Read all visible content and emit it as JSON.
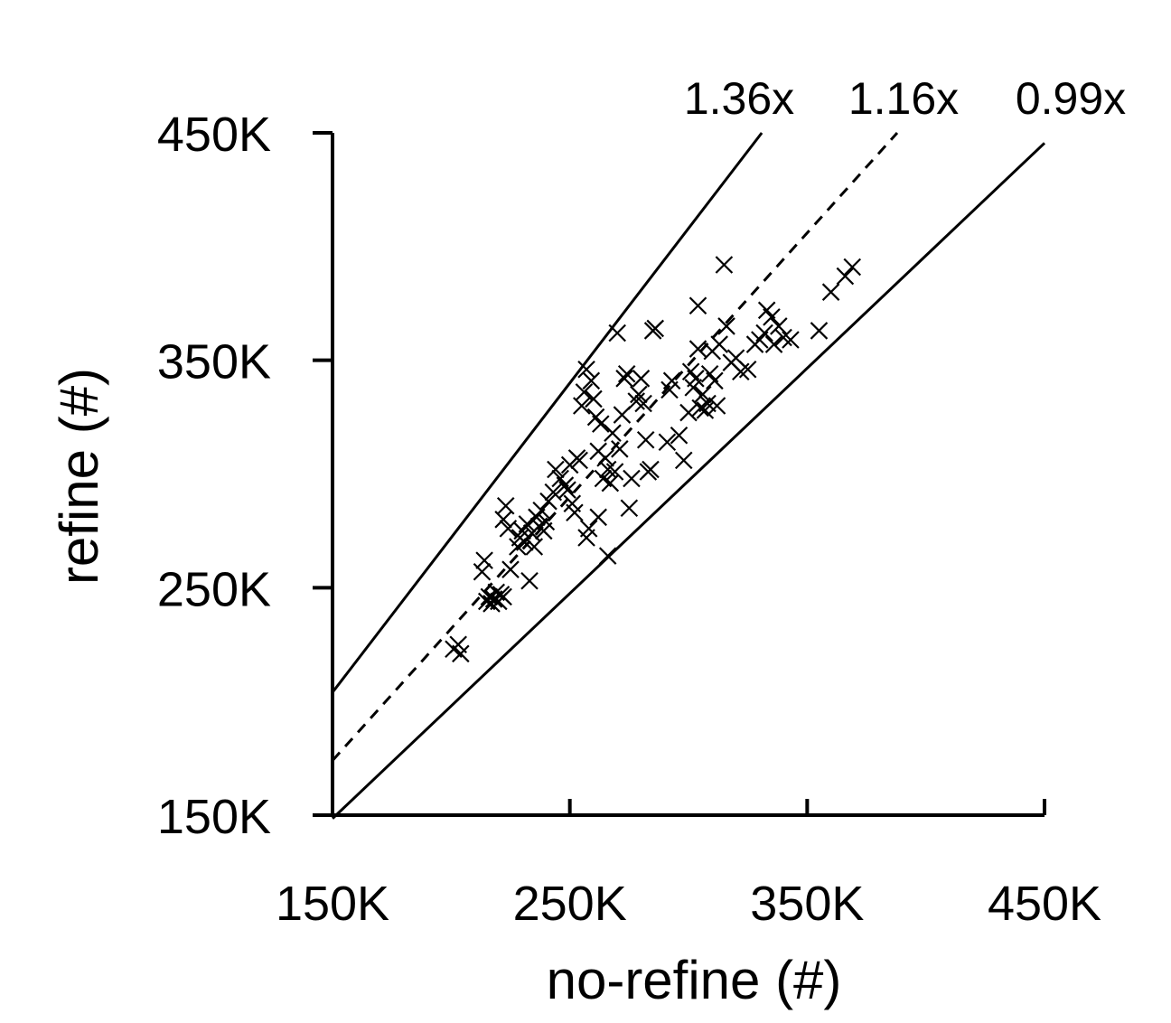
{
  "chart_data": {
    "type": "scatter",
    "title": "",
    "xlabel": "no-refine (#)",
    "ylabel": "refine (#)",
    "xlim": [
      150000,
      450000
    ],
    "ylim": [
      150000,
      450000
    ],
    "x_ticks": [
      {
        "value": 150000,
        "label": "150K"
      },
      {
        "value": 250000,
        "label": "250K"
      },
      {
        "value": 350000,
        "label": "350K"
      },
      {
        "value": 450000,
        "label": "450K"
      }
    ],
    "y_ticks": [
      {
        "value": 150000,
        "label": "150K"
      },
      {
        "value": 250000,
        "label": "250K"
      },
      {
        "value": 350000,
        "label": "350K"
      },
      {
        "value": 450000,
        "label": "450K"
      }
    ],
    "marker": "x",
    "reference_lines": [
      {
        "label": "1.36x",
        "slope": 1.36,
        "style": "solid"
      },
      {
        "label": "1.16x",
        "slope": 1.16,
        "style": "dashed"
      },
      {
        "label": "0.99x",
        "slope": 0.99,
        "style": "solid"
      }
    ],
    "points": [
      [
        201000,
        223000
      ],
      [
        203000,
        225000
      ],
      [
        204000,
        221000
      ],
      [
        213000,
        257000
      ],
      [
        214000,
        262000
      ],
      [
        215000,
        244000
      ],
      [
        216000,
        246000
      ],
      [
        217000,
        243000
      ],
      [
        218000,
        245000
      ],
      [
        219000,
        248000
      ],
      [
        220000,
        244000
      ],
      [
        221000,
        247000
      ],
      [
        222000,
        246000
      ],
      [
        222000,
        280000
      ],
      [
        223000,
        286000
      ],
      [
        224000,
        276000
      ],
      [
        225000,
        258000
      ],
      [
        228000,
        268000
      ],
      [
        229000,
        272000
      ],
      [
        230000,
        275000
      ],
      [
        231000,
        270000
      ],
      [
        232000,
        278000
      ],
      [
        233000,
        253000
      ],
      [
        234000,
        274000
      ],
      [
        235000,
        268000
      ],
      [
        236000,
        281000
      ],
      [
        237000,
        277000
      ],
      [
        238000,
        284000
      ],
      [
        239000,
        275000
      ],
      [
        240000,
        279000
      ],
      [
        241000,
        288000
      ],
      [
        243000,
        292000
      ],
      [
        244000,
        302000
      ],
      [
        246000,
        298000
      ],
      [
        248000,
        295000
      ],
      [
        249000,
        293000
      ],
      [
        250000,
        304000
      ],
      [
        251000,
        287000
      ],
      [
        252000,
        283000
      ],
      [
        253000,
        307000
      ],
      [
        254000,
        306000
      ],
      [
        255000,
        330000
      ],
      [
        256000,
        336000
      ],
      [
        257000,
        346000
      ],
      [
        257000,
        272000
      ],
      [
        258000,
        276000
      ],
      [
        259000,
        341000
      ],
      [
        260000,
        333000
      ],
      [
        261000,
        325000
      ],
      [
        262000,
        310000
      ],
      [
        262000,
        281000
      ],
      [
        263000,
        322000
      ],
      [
        264000,
        298000
      ],
      [
        265000,
        307000
      ],
      [
        266000,
        264000
      ],
      [
        266000,
        302000
      ],
      [
        267000,
        296000
      ],
      [
        268000,
        318000
      ],
      [
        269000,
        301000
      ],
      [
        270000,
        362000
      ],
      [
        271000,
        311000
      ],
      [
        272000,
        326000
      ],
      [
        273000,
        342000
      ],
      [
        274000,
        344000
      ],
      [
        275000,
        285000
      ],
      [
        276000,
        298000
      ],
      [
        278000,
        332000
      ],
      [
        279000,
        335000
      ],
      [
        280000,
        342000
      ],
      [
        281000,
        331000
      ],
      [
        282000,
        315000
      ],
      [
        283000,
        301000
      ],
      [
        284000,
        302000
      ],
      [
        285000,
        363000
      ],
      [
        286000,
        364000
      ],
      [
        291000,
        314000
      ],
      [
        292000,
        337000
      ],
      [
        293000,
        341000
      ],
      [
        296000,
        317000
      ],
      [
        298000,
        306000
      ],
      [
        300000,
        327000
      ],
      [
        301000,
        345000
      ],
      [
        302000,
        338000
      ],
      [
        303000,
        342000
      ],
      [
        304000,
        355000
      ],
      [
        304000,
        374000
      ],
      [
        305000,
        329000
      ],
      [
        306000,
        335000
      ],
      [
        307000,
        328000
      ],
      [
        308000,
        331000
      ],
      [
        309000,
        344000
      ],
      [
        310000,
        354000
      ],
      [
        311000,
        341000
      ],
      [
        312000,
        330000
      ],
      [
        313000,
        357000
      ],
      [
        315000,
        392000
      ],
      [
        316000,
        365000
      ],
      [
        318000,
        349000
      ],
      [
        320000,
        351000
      ],
      [
        322000,
        345000
      ],
      [
        325000,
        346000
      ],
      [
        328000,
        357000
      ],
      [
        330000,
        359000
      ],
      [
        332000,
        362000
      ],
      [
        333000,
        372000
      ],
      [
        335000,
        369000
      ],
      [
        336000,
        357000
      ],
      [
        338000,
        365000
      ],
      [
        340000,
        360000
      ],
      [
        343000,
        359000
      ],
      [
        355000,
        363000
      ],
      [
        360000,
        380000
      ],
      [
        366000,
        387000
      ],
      [
        369000,
        391000
      ]
    ]
  }
}
